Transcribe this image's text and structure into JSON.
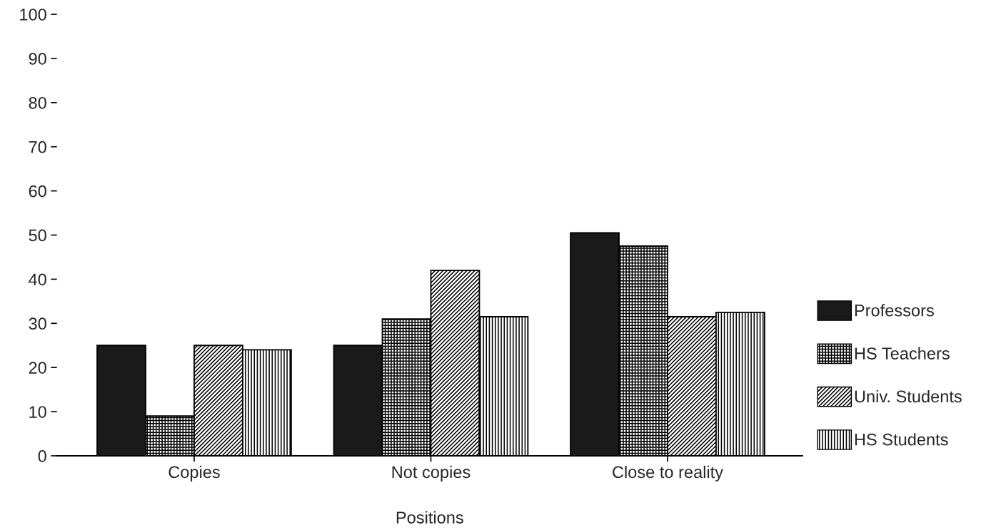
{
  "chart_data": {
    "type": "bar",
    "xlabel": "Positions",
    "categories": [
      "Copies",
      "Not copies",
      "Close to reality"
    ],
    "series": [
      {
        "name": "Professors",
        "color": "#1a1a1a",
        "values": [
          25,
          25,
          50.5
        ]
      },
      {
        "name": "HS Teachers",
        "color": "#000000",
        "values": [
          9,
          31,
          47.5
        ]
      },
      {
        "name": "Univ. Students",
        "color": "#000000",
        "values": [
          25,
          42,
          31.5
        ]
      },
      {
        "name": "HS Students",
        "color": "#000000",
        "values": [
          24,
          31.5,
          32.5
        ]
      }
    ],
    "ylim": [
      0,
      100
    ],
    "yticks": [
      0,
      10,
      20,
      30,
      40,
      50,
      60,
      70,
      80,
      90,
      100
    ],
    "grid": false,
    "legend": "right"
  }
}
